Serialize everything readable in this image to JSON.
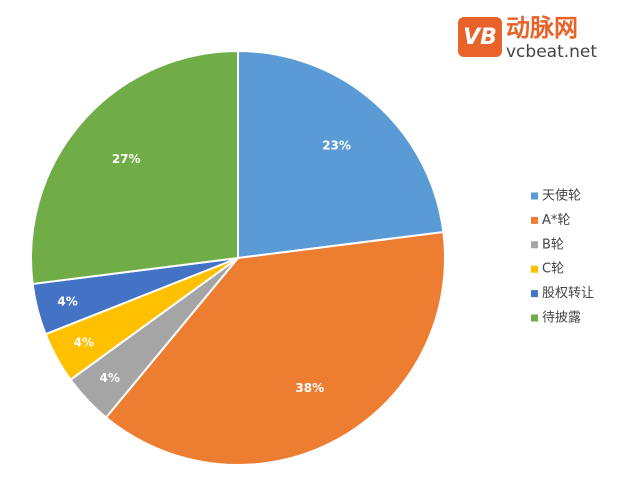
{
  "chart_data": {
    "type": "pie",
    "categories": [
      "天使轮",
      "A*轮",
      "B轮",
      "C轮",
      "股权转让",
      "待披露"
    ],
    "series": [
      {
        "values": [
          23,
          38,
          4,
          4,
          4,
          27
        ],
        "value_labels": [
          "23%",
          "38%",
          "4%",
          "4%",
          "4%",
          "27%"
        ]
      }
    ],
    "colors": [
      "#5b9bd5",
      "#ed7d31",
      "#a5a5a5",
      "#ffc000",
      "#4472c4",
      "#70ad47"
    ],
    "legend": "right"
  },
  "logo": {
    "mark": "VB",
    "name": "动脉网",
    "site": "vcbeat.net"
  }
}
